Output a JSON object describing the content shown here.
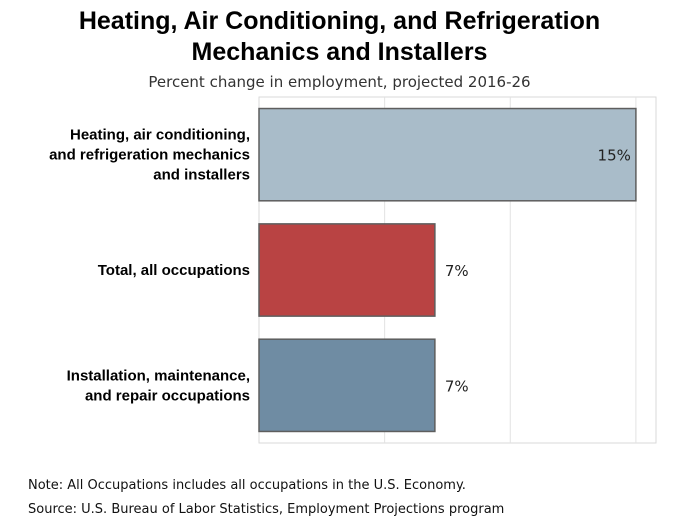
{
  "chart_data": {
    "type": "bar",
    "orientation": "horizontal",
    "title_lines": [
      "Heating, Air Conditioning, and Refrigeration",
      "Mechanics and Installers"
    ],
    "subtitle": "Percent change in employment, projected 2016-26",
    "categories": [
      [
        "Heating, air conditioning,",
        "and refrigeration mechanics",
        "and installers"
      ],
      [
        "Total, all occupations"
      ],
      [
        "Installation, maintenance,",
        "and repair occupations"
      ]
    ],
    "values": [
      15,
      7,
      7
    ],
    "value_labels": [
      "15%",
      "7%",
      "7%"
    ],
    "colors": [
      "#a9bcc9",
      "#b94343",
      "#6f8ca3"
    ],
    "xlim": [
      0,
      15.8
    ],
    "grid": true,
    "legend": "none"
  },
  "notes": {
    "note": "Note: All Occupations includes all occupations in the U.S. Economy.",
    "source": "Source: U.S. Bureau of Labor Statistics, Employment Projections program"
  }
}
